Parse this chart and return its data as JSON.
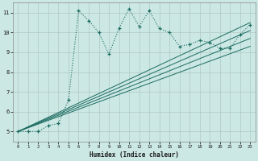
{
  "xlabel": "Humidex (Indice chaleur)",
  "bg_color": "#cce8e4",
  "grid_color": "#b0c8c4",
  "line_color": "#1a6a60",
  "xlim": [
    -0.5,
    23.5
  ],
  "ylim": [
    4.5,
    11.5
  ],
  "xticks": [
    0,
    1,
    2,
    3,
    4,
    5,
    6,
    7,
    8,
    9,
    10,
    11,
    12,
    13,
    14,
    15,
    16,
    17,
    18,
    19,
    20,
    21,
    22,
    23
  ],
  "yticks": [
    5,
    6,
    7,
    8,
    9,
    10,
    11
  ],
  "jagged_x": [
    0,
    1,
    2,
    3,
    4,
    5,
    6,
    7,
    8,
    9,
    10,
    11,
    12,
    13,
    14,
    15,
    16,
    17,
    18,
    19,
    20,
    21,
    22,
    23
  ],
  "jagged_y": [
    5.0,
    5.0,
    5.0,
    5.3,
    5.4,
    6.6,
    11.1,
    10.6,
    10.0,
    8.9,
    10.2,
    11.2,
    10.3,
    11.1,
    10.2,
    10.0,
    9.3,
    9.4,
    9.6,
    9.5,
    9.2,
    9.2,
    9.9,
    10.4
  ],
  "straight_lines": [
    {
      "x": [
        0,
        23
      ],
      "y": [
        5.0,
        10.5
      ]
    },
    {
      "x": [
        0,
        23
      ],
      "y": [
        5.0,
        10.1
      ]
    },
    {
      "x": [
        0,
        23
      ],
      "y": [
        5.0,
        9.7
      ]
    },
    {
      "x": [
        0,
        23
      ],
      "y": [
        5.0,
        9.3
      ]
    }
  ]
}
